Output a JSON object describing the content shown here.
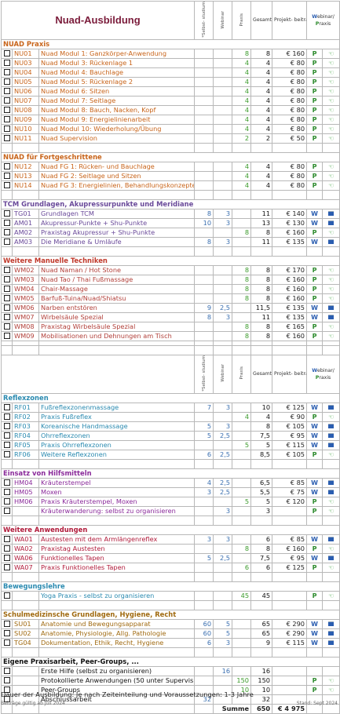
{
  "title": "Nuad-Ausbildung",
  "headers": {
    "selbst": "*Selbst- studium",
    "webinar": "Webinar",
    "praxis": "Praxis",
    "gesamt": "Gesamt- Stunden",
    "preis": "Projekt- beitrag",
    "wp_w": "W",
    "wp_rest1": "ebinar/",
    "wp_p": "P",
    "wp_rest2": "raxis"
  },
  "sections": [
    {
      "title": "NUAD Praxis",
      "color": "#c8641a",
      "text_color": "#c8641a",
      "rows": [
        [
          "NU01",
          "Nuad Modul 1: Ganzkörper-Anwendung",
          "",
          "",
          "8",
          "8",
          "€ 160",
          "P",
          "p"
        ],
        [
          "NU03",
          "Nuad Modul 3: Rückenlage 1",
          "",
          "",
          "4",
          "4",
          "€ 80",
          "P",
          "p"
        ],
        [
          "NU04",
          "Nuad Modul 4: Bauchlage",
          "",
          "",
          "4",
          "4",
          "€ 80",
          "P",
          "p"
        ],
        [
          "NU05",
          "Nuad Modul 5: Rückenlage 2",
          "",
          "",
          "4",
          "4",
          "€ 80",
          "P",
          "p"
        ],
        [
          "NU06",
          "Nuad Modul 6: Sitzen",
          "",
          "",
          "4",
          "4",
          "€ 80",
          "P",
          "p"
        ],
        [
          "NU07",
          "Nuad Modul 7: Seitlage",
          "",
          "",
          "4",
          "4",
          "€ 80",
          "P",
          "p"
        ],
        [
          "NU08",
          "Nuad Modul 8: Bauch, Nacken, Kopf",
          "",
          "",
          "4",
          "4",
          "€ 80",
          "P",
          "p"
        ],
        [
          "NU09",
          "Nuad Modul 9: Energielinienarbeit",
          "",
          "",
          "4",
          "4",
          "€ 80",
          "P",
          "p"
        ],
        [
          "NU10",
          "Nuad Modul 10: Wiederholung/Übung",
          "",
          "",
          "4",
          "4",
          "€ 80",
          "P",
          "p"
        ],
        [
          "NU11",
          "Nuad Supervision",
          "",
          "",
          "2",
          "2",
          "€ 50",
          "P",
          "p"
        ]
      ]
    },
    {
      "title": "NUAD für Fortgeschrittene",
      "color": "#c8641a",
      "text_color": "#c8641a",
      "rows": [
        [
          "NU12",
          "Nuad FG 1: Rücken- und Bauchlage",
          "",
          "",
          "4",
          "4",
          "€ 80",
          "P",
          "p"
        ],
        [
          "NU13",
          "Nuad FG 2: Seitlage und Sitzen",
          "",
          "",
          "4",
          "4",
          "€ 80",
          "P",
          "p"
        ],
        [
          "NU14",
          "Nuad FG 3: Energielinien, Behandlungskonzepte",
          "",
          "",
          "4",
          "4",
          "€ 80",
          "P",
          "p"
        ]
      ]
    },
    {
      "title": "TCM Grundlagen, Akupressurpunkte und Meridiane",
      "color": "#6a4a9a",
      "text_color": "#6a4a9a",
      "rows": [
        [
          "TG01",
          "Grundlagen TCM",
          "8",
          "3",
          "",
          "11",
          "€ 140",
          "W",
          "s"
        ],
        [
          "AM01",
          "Akupressur-Punkte + Shu-Punkte",
          "10",
          "3",
          "",
          "13",
          "€ 130",
          "W",
          "s"
        ],
        [
          "AM02",
          "Praxistag Akupressur + Shu-Punkte",
          "",
          "",
          "8",
          "8",
          "€ 160",
          "P",
          "p"
        ],
        [
          "AM03",
          "Die Meridiane & Umläufe",
          "8",
          "3",
          "",
          "11",
          "€ 135",
          "W",
          "s"
        ]
      ]
    },
    {
      "title": "Weitere Manuelle Techniken",
      "color": "#c0392b",
      "text_color": "#b2403a",
      "rows": [
        [
          "WM02",
          "Nuad Naman / Hot Stone",
          "",
          "",
          "8",
          "8",
          "€ 170",
          "P",
          "p"
        ],
        [
          "WM03",
          "Nuad Tao / Thai Fußmassage",
          "",
          "",
          "8",
          "8",
          "€ 160",
          "P",
          "p"
        ],
        [
          "WM04",
          "Chair-Massage",
          "",
          "",
          "8",
          "8",
          "€ 160",
          "P",
          "p"
        ],
        [
          "WM05",
          "Barfuß-Tuina/Nuad/Shiatsu",
          "",
          "",
          "8",
          "8",
          "€ 160",
          "P",
          "p"
        ],
        [
          "WM06",
          "Narben entstören",
          "9",
          "2,5",
          "",
          "11,5",
          "€ 135",
          "W",
          "s"
        ],
        [
          "WM07",
          "Wirbelsäule Spezial",
          "8",
          "3",
          "",
          "11",
          "€ 135",
          "W",
          "s"
        ],
        [
          "WM08",
          "Praxistag Wirbelsäule Spezial",
          "",
          "",
          "8",
          "8",
          "€ 165",
          "P",
          "p"
        ],
        [
          "WM09",
          "Mobilisationen und Dehnungen am Tisch",
          "",
          "",
          "8",
          "8",
          "€ 160",
          "P",
          "p"
        ]
      ]
    },
    {
      "title": "Reflexzonen",
      "color": "#2a8ab0",
      "text_color": "#2a8ab0",
      "header_before": true,
      "rows": [
        [
          "RF01",
          "Fußreflexzonenmassage",
          "7",
          "3",
          "",
          "10",
          "€ 125",
          "W",
          "s"
        ],
        [
          "RF02",
          "Praxis Fußreflex",
          "",
          "",
          "4",
          "4",
          "€ 90",
          "P",
          "p"
        ],
        [
          "RF03",
          "Koreanische Handmassage",
          "5",
          "3",
          "",
          "8",
          "€ 105",
          "W",
          "s"
        ],
        [
          "RF04",
          "Ohrreflexzonen",
          "5",
          "2,5",
          "",
          "7,5",
          "€ 95",
          "W",
          "s"
        ],
        [
          "RF05",
          "Praxis Ohrreflexzonen",
          "",
          "",
          "5",
          "5",
          "€ 115",
          "W",
          "s"
        ],
        [
          "RF06",
          "Weitere Reflexzonen",
          "6",
          "2,5",
          "",
          "8,5",
          "€ 105",
          "P",
          "p"
        ]
      ]
    },
    {
      "title": "Einsatz von Hilfsmitteln",
      "color": "#8a2a9a",
      "text_color": "#8a2a9a",
      "rows": [
        [
          "HM04",
          "Kräuterstempel",
          "4",
          "2,5",
          "",
          "6,5",
          "€ 85",
          "W",
          "s"
        ],
        [
          "HM05",
          "Moxen",
          "3",
          "2,5",
          "",
          "5,5",
          "€ 75",
          "W",
          "s"
        ],
        [
          "HM06",
          "Praxis Kräuterstempel, Moxen",
          "",
          "",
          "5",
          "5",
          "€ 120",
          "P",
          "p"
        ],
        [
          "",
          "Kräuterwanderung: selbst zu organisieren",
          "",
          "3",
          "",
          "3",
          "",
          "P",
          "p"
        ]
      ]
    },
    {
      "title": "Weitere Anwendungen",
      "color": "#b01a3a",
      "text_color": "#b01a3a",
      "rows": [
        [
          "WA01",
          "Austesten mit dem Armlängenreflex",
          "3",
          "3",
          "",
          "6",
          "€ 85",
          "W",
          "s"
        ],
        [
          "WA02",
          "Praxistag Austesten",
          "",
          "",
          "8",
          "8",
          "€ 160",
          "P",
          "p"
        ],
        [
          "WA06",
          "Funktionelles Tapen",
          "5",
          "2,5",
          "",
          "7,5",
          "€ 95",
          "W",
          "s"
        ],
        [
          "WA07",
          "Praxis Funktionelles Tapen",
          "",
          "",
          "6",
          "6",
          "€ 125",
          "P",
          "p"
        ]
      ]
    },
    {
      "title": "Bewegungslehre",
      "color": "#2a8ab0",
      "text_color": "#2a8ab0",
      "rows": [
        [
          "",
          "Yoga Praxis - selbst zu organisieren",
          "",
          "",
          "45",
          "45",
          "",
          "P",
          "p"
        ]
      ]
    },
    {
      "title": "Schulmedizinsche Grundlagen, Hygiene, Recht",
      "color": "#a06a10",
      "text_color": "#a06a10",
      "rows": [
        [
          "SU01",
          "Anatomie und Bewegungsapparat",
          "60",
          "5",
          "",
          "65",
          "€ 290",
          "W",
          "s"
        ],
        [
          "SU02",
          "Anatomie, Physiologie, Allg. Pathologie",
          "60",
          "5",
          "",
          "65",
          "€ 290",
          "W",
          "s"
        ],
        [
          "TG04",
          "Dokumentation, Ethik, Recht, Hygiene",
          "6",
          "3",
          "",
          "9",
          "€ 115",
          "W",
          "s"
        ]
      ]
    },
    {
      "title": "Eigene Praxisarbeit, Peer-Groups, ...",
      "color": "#111111",
      "text_color": "#111111",
      "rows": [
        [
          "",
          "Erste Hilfe (selbst zu organisieren)",
          "",
          "16",
          "",
          "16",
          "",
          "",
          ""
        ],
        [
          "",
          "Protokollierte Anwendungen (50 unter Supervision)",
          "",
          "",
          "150",
          "150",
          "",
          "P",
          "p"
        ],
        [
          "",
          "Peer-Groups",
          "",
          "",
          "10",
          "10",
          "",
          "P",
          "p"
        ],
        [
          "",
          "Abschlussarbeit",
          "32",
          "",
          "",
          "32",
          "",
          "",
          ""
        ]
      ]
    }
  ],
  "summe": {
    "label": "Summe",
    "hours": "650",
    "price": "€ 4 975"
  },
  "footer": {
    "line1": "Dauer der Ausbildung: Je nach Zeiteinteilung und Voraussetzungen: 1-3 Jahre",
    "left": "Beiträge gültig ab Juli 2024",
    "right": "Stand: Sept 2024"
  }
}
